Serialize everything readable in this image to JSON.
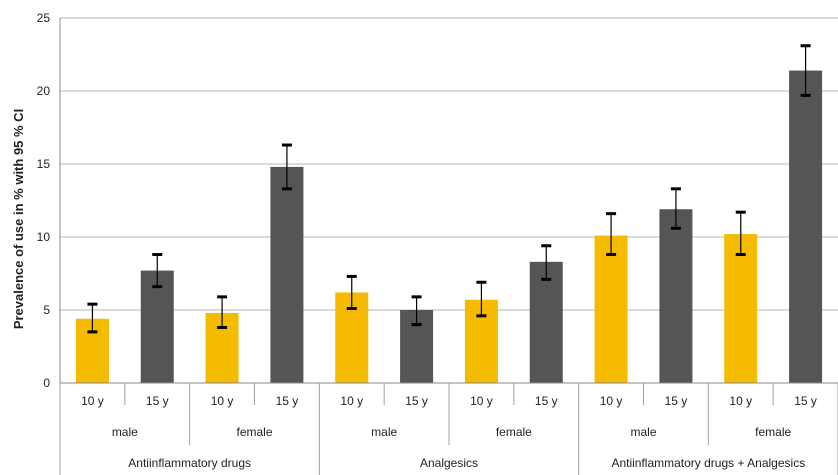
{
  "chart_data": {
    "type": "bar",
    "title": "",
    "xlabel": "",
    "ylabel": "Prevalence of use in % with 95 % CI",
    "ylim": [
      0,
      25
    ],
    "yticks": [
      0,
      5,
      10,
      15,
      20,
      25
    ],
    "grid": true,
    "legend": "none",
    "colors": {
      "10 y": "#f5bb00",
      "15 y": "#555555"
    },
    "groups": [
      "Antiinflammatory drugs",
      "Analgesics",
      "Antiinflammatory drugs + Analgesics"
    ],
    "sexes": [
      "male",
      "female"
    ],
    "ages": [
      "10 y",
      "15 y"
    ],
    "bars": [
      {
        "group": "Antiinflammatory drugs",
        "sex": "male",
        "age": "10 y",
        "value": 4.4,
        "ci": [
          3.5,
          5.4
        ]
      },
      {
        "group": "Antiinflammatory drugs",
        "sex": "male",
        "age": "15 y",
        "value": 7.7,
        "ci": [
          6.6,
          8.8
        ]
      },
      {
        "group": "Antiinflammatory drugs",
        "sex": "female",
        "age": "10 y",
        "value": 4.8,
        "ci": [
          3.8,
          5.9
        ]
      },
      {
        "group": "Antiinflammatory drugs",
        "sex": "female",
        "age": "15 y",
        "value": 14.8,
        "ci": [
          13.3,
          16.3
        ]
      },
      {
        "group": "Analgesics",
        "sex": "male",
        "age": "10 y",
        "value": 6.2,
        "ci": [
          5.1,
          7.3
        ]
      },
      {
        "group": "Analgesics",
        "sex": "male",
        "age": "15 y",
        "value": 5.0,
        "ci": [
          4.0,
          5.9
        ]
      },
      {
        "group": "Analgesics",
        "sex": "female",
        "age": "10 y",
        "value": 5.7,
        "ci": [
          4.6,
          6.9
        ]
      },
      {
        "group": "Analgesics",
        "sex": "female",
        "age": "15 y",
        "value": 8.3,
        "ci": [
          7.1,
          9.4
        ]
      },
      {
        "group": "Antiinflammatory drugs + Analgesics",
        "sex": "male",
        "age": "10 y",
        "value": 10.1,
        "ci": [
          8.8,
          11.6
        ]
      },
      {
        "group": "Antiinflammatory drugs + Analgesics",
        "sex": "male",
        "age": "15 y",
        "value": 11.9,
        "ci": [
          10.6,
          13.3
        ]
      },
      {
        "group": "Antiinflammatory drugs + Analgesics",
        "sex": "female",
        "age": "10 y",
        "value": 10.2,
        "ci": [
          8.8,
          11.7
        ]
      },
      {
        "group": "Antiinflammatory drugs + Analgesics",
        "sex": "female",
        "age": "15 y",
        "value": 21.4,
        "ci": [
          19.7,
          23.1
        ]
      }
    ]
  }
}
